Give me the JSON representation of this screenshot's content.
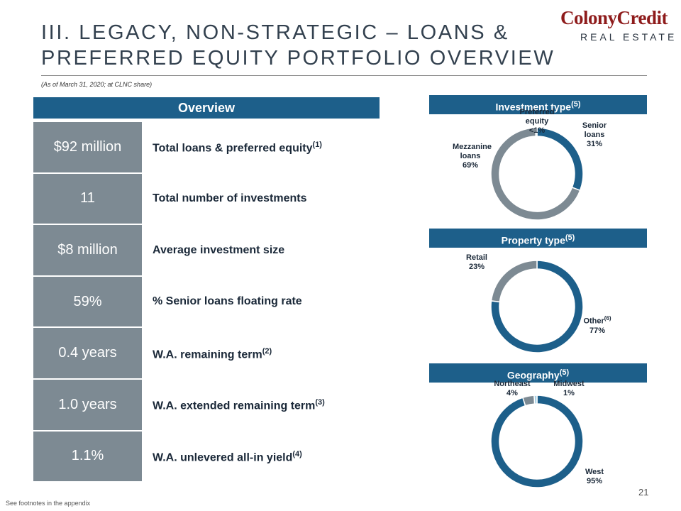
{
  "header": {
    "title_lines": [
      "III. LEGACY, NON-STRATEGIC – LOANS &",
      "PREFERRED EQUITY PORTFOLIO OVERVIEW"
    ],
    "logo_main": "ColonyCredit",
    "logo_sub": "REAL ESTATE",
    "subtitle": "(As of March 31, 2020; at CLNC share)"
  },
  "overview": {
    "title": "Overview",
    "rows": [
      {
        "value": "$92 million",
        "label": "Total loans & preferred equity",
        "note": "(1)"
      },
      {
        "value": "11",
        "label": "Total number of investments"
      },
      {
        "value": "$8 million",
        "label": "Average investment size"
      },
      {
        "value": "59%",
        "label": "% Senior loans floating rate"
      },
      {
        "value": "0.4 years",
        "label": "W.A. remaining term",
        "note": "(2)"
      },
      {
        "value": "1.0 years",
        "label": "W.A. extended remaining term",
        "note": "(3)"
      },
      {
        "value": "1.1%",
        "label": "W.A. unlevered all-in yield",
        "note": "(4)"
      }
    ]
  },
  "chart_data": [
    {
      "type": "pie",
      "title": "Investment type",
      "title_note": "(5)",
      "categories": [
        "Senior loans",
        "Mezzanine loans",
        "Preferred equity"
      ],
      "values": [
        31,
        69,
        0.5
      ],
      "value_labels": [
        "31%",
        "69%",
        "<1%"
      ],
      "colors": [
        "#1d5f8a",
        "#7d8a93",
        "#a8d2e6"
      ]
    },
    {
      "type": "pie",
      "title": "Property type",
      "title_note": "(5)",
      "categories": [
        "Other",
        "Retail"
      ],
      "category_notes": [
        "(6)",
        null
      ],
      "values": [
        77,
        23
      ],
      "value_labels": [
        "77%",
        "23%"
      ],
      "colors": [
        "#1d5f8a",
        "#7d8a93"
      ]
    },
    {
      "type": "pie",
      "title": "Geography",
      "title_note": "(5)",
      "categories": [
        "West",
        "Northeast",
        "Midwest"
      ],
      "values": [
        95,
        4,
        1
      ],
      "value_labels": [
        "95%",
        "4%",
        "1%"
      ],
      "colors": [
        "#1d5f8a",
        "#7d8a93",
        "#a8d2e6"
      ]
    }
  ],
  "footer": {
    "note": "See footnotes in the appendix",
    "page": "21"
  }
}
